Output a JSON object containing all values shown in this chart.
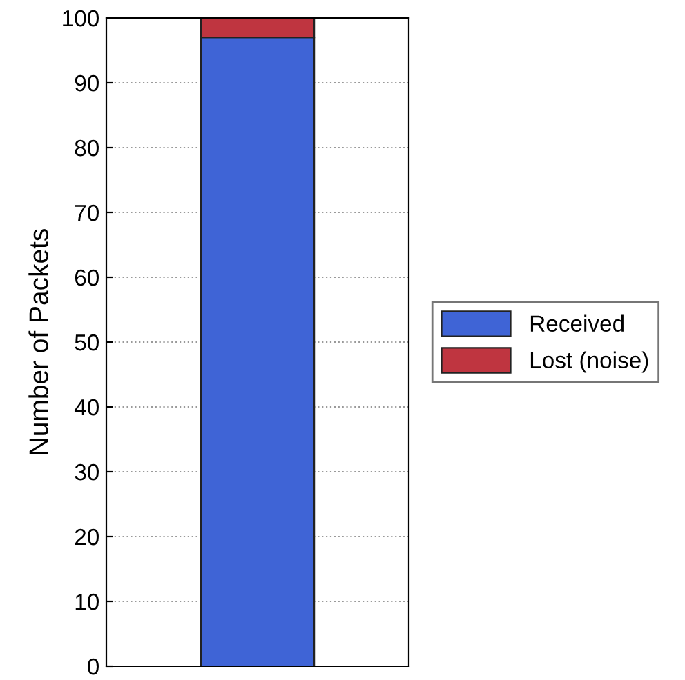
{
  "chart_data": {
    "type": "bar",
    "stacked": true,
    "ylabel": "Number of Packets",
    "categories": [
      null
    ],
    "series": [
      {
        "name": "Received",
        "color": "#3f64d6",
        "values": [
          97
        ]
      },
      {
        "name": "Lost (noise)",
        "color": "#bf3540",
        "values": [
          3
        ]
      }
    ],
    "ylim": [
      0,
      100
    ],
    "yticks": [
      0,
      10,
      20,
      30,
      40,
      50,
      60,
      70,
      80,
      90,
      100
    ],
    "grid": "y",
    "legend": "right",
    "tick_labels": "y"
  }
}
